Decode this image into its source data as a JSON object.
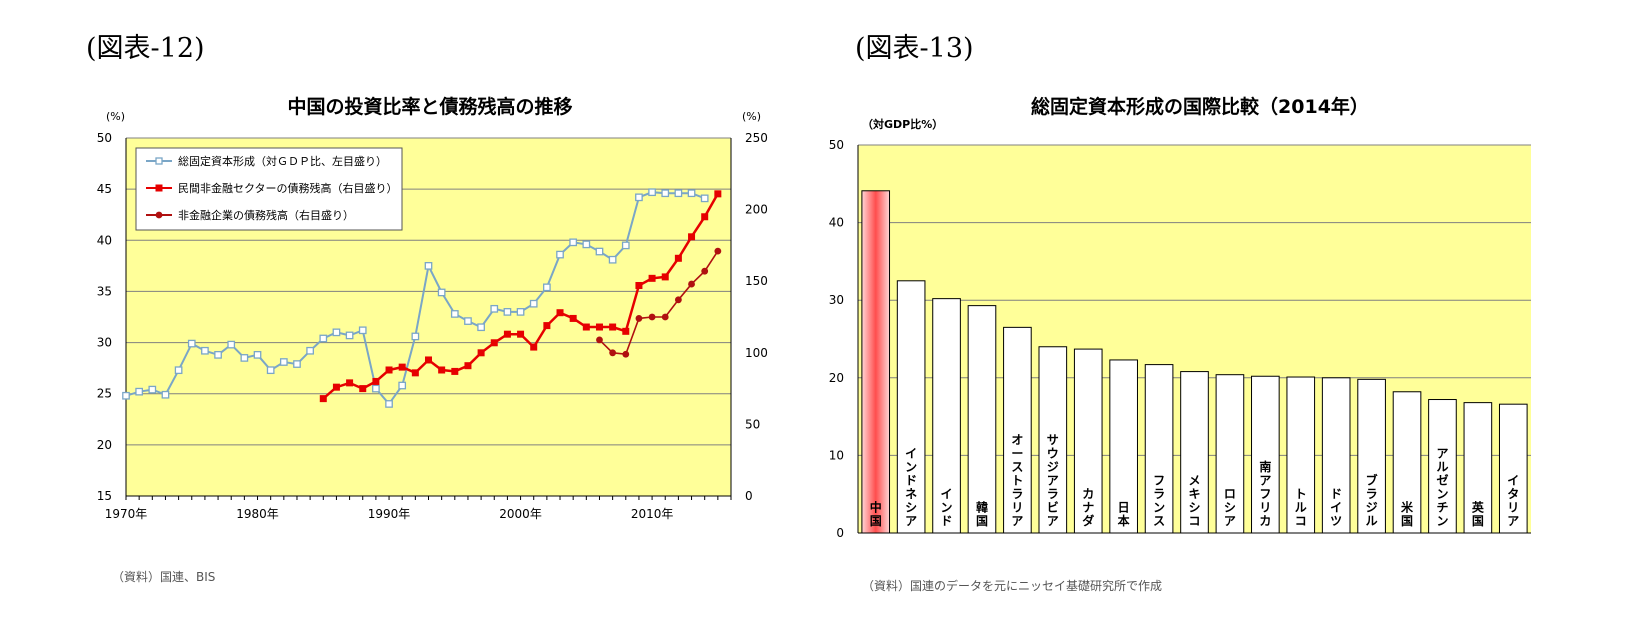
{
  "figures": {
    "fig12_label": "(図表-12)",
    "fig13_label": "(図表-13)"
  },
  "chart_data": [
    {
      "type": "line",
      "title": "中国の投資比率と債務残高の推移",
      "left_unit": "(%)",
      "right_unit": "(%)",
      "ylim_left": [
        15,
        50
      ],
      "ylim_right": [
        0,
        250
      ],
      "y_ticks_left": [
        "15",
        "20",
        "25",
        "30",
        "35",
        "40",
        "45",
        "50"
      ],
      "y_ticks_right": [
        "0",
        "50",
        "100",
        "150",
        "200",
        "250"
      ],
      "x_ticks": [
        "1970年",
        "1980年",
        "1990年",
        "2000年",
        "2010年"
      ],
      "x_tick_years": [
        1970,
        1980,
        1990,
        2000,
        2010
      ],
      "xlim": [
        1970,
        2016
      ],
      "grid": true,
      "legend_position": "top-left",
      "source": "（資料）国連、BIS",
      "series": [
        {
          "name": "総固定資本形成（対ＧＤＰ比、左目盛り）",
          "axis": "left",
          "color": "#7aa6c7",
          "marker": "square-open",
          "x": [
            1970,
            1971,
            1972,
            1973,
            1974,
            1975,
            1976,
            1977,
            1978,
            1979,
            1980,
            1981,
            1982,
            1983,
            1984,
            1985,
            1986,
            1987,
            1988,
            1989,
            1990,
            1991,
            1992,
            1993,
            1994,
            1995,
            1996,
            1997,
            1998,
            1999,
            2000,
            2001,
            2002,
            2003,
            2004,
            2005,
            2006,
            2007,
            2008,
            2009,
            2010,
            2011,
            2012,
            2013,
            2014
          ],
          "y": [
            24.8,
            25.2,
            25.4,
            24.9,
            27.3,
            29.9,
            29.2,
            28.8,
            29.8,
            28.5,
            28.8,
            27.3,
            28.1,
            27.9,
            29.2,
            30.4,
            31.0,
            30.7,
            31.2,
            25.5,
            24.0,
            25.8,
            30.6,
            37.5,
            34.9,
            32.8,
            32.1,
            31.5,
            33.3,
            33.0,
            33.0,
            33.8,
            35.4,
            38.6,
            39.8,
            39.6,
            38.9,
            38.1,
            39.5,
            44.2,
            44.7,
            44.6,
            44.6,
            44.6,
            44.1
          ]
        },
        {
          "name": "民間非金融セクターの債務残高（右目盛り）",
          "axis": "right",
          "color": "#e60000",
          "marker": "square-filled",
          "x": [
            1985,
            1986,
            1987,
            1988,
            1989,
            1990,
            1991,
            1992,
            1993,
            1994,
            1995,
            1996,
            1997,
            1998,
            1999,
            2000,
            2001,
            2002,
            2003,
            2004,
            2005,
            2006,
            2007,
            2008,
            2009,
            2010,
            2011,
            2012,
            2013,
            2014,
            2015
          ],
          "y": [
            68,
            76,
            79,
            75,
            80,
            88,
            90,
            86,
            95,
            88,
            87,
            91,
            100,
            107,
            113,
            113,
            104,
            119,
            128,
            124,
            118,
            118,
            118,
            115,
            147,
            152,
            153,
            166,
            181,
            195,
            211
          ]
        },
        {
          "name": "非金融企業の債務残高（右目盛り）",
          "axis": "right",
          "color": "#b01010",
          "marker": "circle-filled",
          "x": [
            2006,
            2007,
            2008,
            2009,
            2010,
            2011,
            2012,
            2013,
            2014,
            2015
          ],
          "y": [
            109,
            100,
            99,
            124,
            125,
            125,
            137,
            148,
            157,
            171
          ]
        }
      ]
    },
    {
      "type": "bar",
      "title": "総固定資本形成の国際比較（2014年）",
      "ylabel": "（対GDP比%）",
      "ylim": [
        0,
        50
      ],
      "y_ticks": [
        "0",
        "10",
        "20",
        "30",
        "40",
        "50"
      ],
      "grid": true,
      "source": "（資料）国連のデータを元にニッセイ基礎研究所で作成",
      "categories": [
        "中国",
        "インドネシア",
        "インド",
        "韓国",
        "オーストラリア",
        "サウジアラビア",
        "カナダ",
        "日本",
        "フランス",
        "メキシコ",
        "ロシア",
        "南アフリカ",
        "トルコ",
        "ドイツ",
        "ブラジル",
        "米国",
        "アルゼンチン",
        "英国",
        "イタリア"
      ],
      "values": [
        44.1,
        32.5,
        30.2,
        29.3,
        26.5,
        24.0,
        23.7,
        22.3,
        21.7,
        20.8,
        20.4,
        20.2,
        20.1,
        20.0,
        19.8,
        18.2,
        17.2,
        16.8,
        16.6
      ],
      "highlight_color": "#ff4d4d",
      "bar_color": "#ffffff"
    }
  ]
}
